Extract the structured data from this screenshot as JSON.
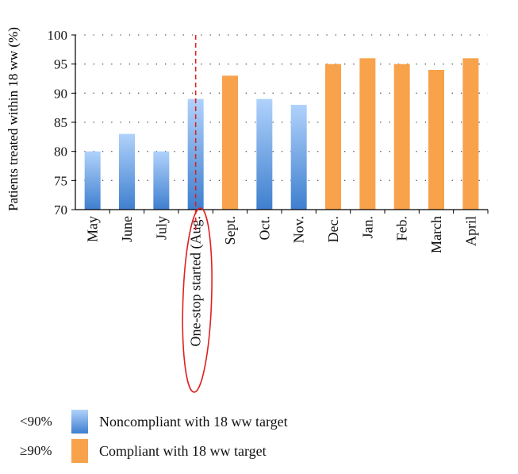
{
  "chart_data": {
    "type": "bar",
    "ylabel": "Patients treated within 18 ww (%)",
    "xlabel": "",
    "ylim": [
      70,
      100
    ],
    "yticks": [
      70,
      75,
      80,
      85,
      90,
      95,
      100
    ],
    "grid": true,
    "categories": [
      "May",
      "June",
      "July",
      "One-stop started (Aug.",
      "Sept.",
      "Oct.",
      "Nov.",
      "Dec.",
      "Jan.",
      "Feb.",
      "March",
      "April"
    ],
    "values": [
      80,
      83,
      80,
      89,
      93,
      89,
      88,
      95,
      96,
      95,
      94,
      96
    ],
    "compliance_threshold": 90,
    "marker_category": "One-stop started (Aug.",
    "colors": {
      "noncompliant_top": "#b0d2fb",
      "noncompliant_bottom": "#3f7fcf",
      "compliant": "#f8a24c",
      "marker": "#e02020",
      "axis": "#000000"
    }
  },
  "legend": [
    {
      "threshold": "<90%",
      "label": "Noncompliant with 18 ww target",
      "swatch": "blue"
    },
    {
      "threshold": "≥90%",
      "label": "Compliant with 18 ww target",
      "swatch": "orange"
    }
  ]
}
